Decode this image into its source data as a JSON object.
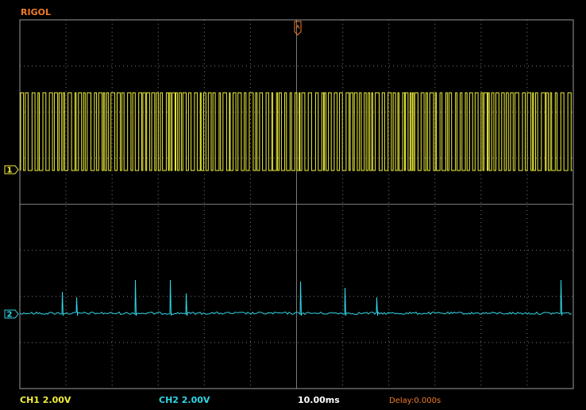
{
  "header": {
    "brand": "RIGOL"
  },
  "channels": [
    {
      "marker": "1",
      "scale": "CH1 2.00V"
    },
    {
      "marker": "2",
      "scale": "CH2 2.00V"
    }
  ],
  "timebase": "10.00ms",
  "delay": "Delay:0.000s"
}
